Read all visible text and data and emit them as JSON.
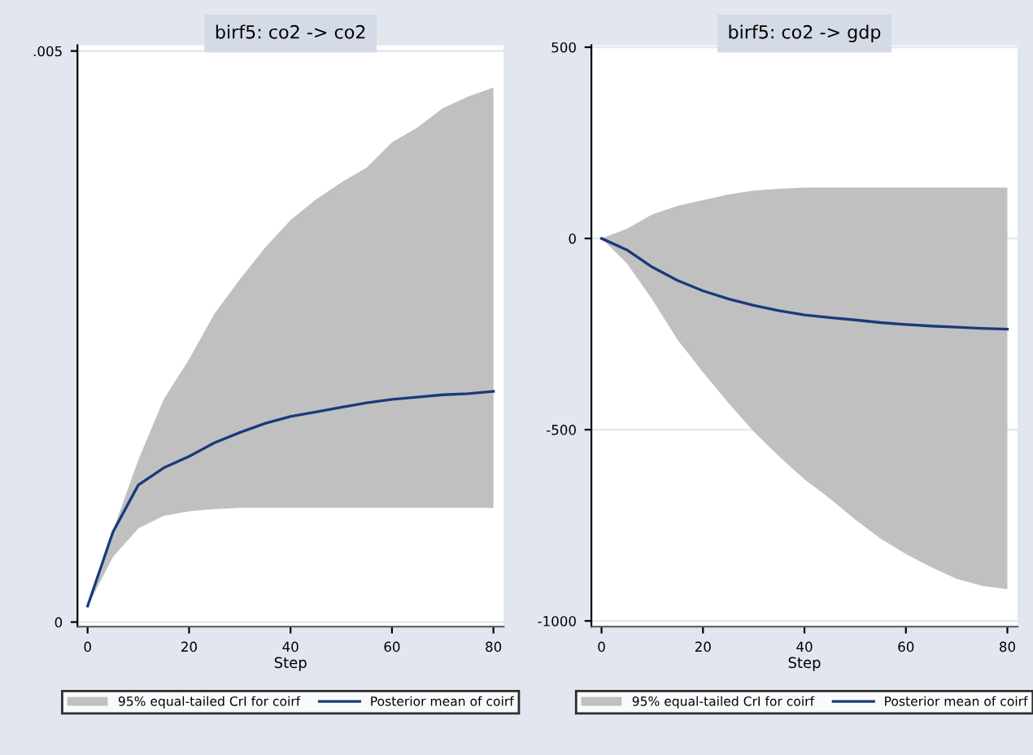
{
  "chart_data": [
    {
      "type": "line",
      "title": "birf5: co2 -> co2",
      "xlabel": "Step",
      "annotations": [
        "95% equal-tailed CrI for coirf"
      ],
      "x": [
        0,
        5,
        10,
        15,
        20,
        25,
        30,
        35,
        40,
        45,
        50,
        55,
        60,
        65,
        70,
        75,
        80
      ],
      "series": [
        {
          "name": "Posterior mean of coirf",
          "color": "#1a3a7a",
          "values": [
            0.00014,
            0.00079,
            0.0012,
            0.00135,
            0.00145,
            0.00157,
            0.00166,
            0.00174,
            0.0018,
            0.00184,
            0.00188,
            0.00192,
            0.00195,
            0.00197,
            0.00199,
            0.002,
            0.00202
          ],
          "lower": [
            0.00014,
            0.00057,
            0.00082,
            0.00093,
            0.00097,
            0.00099,
            0.001,
            0.001,
            0.001,
            0.001,
            0.001,
            0.001,
            0.001,
            0.001,
            0.001,
            0.001,
            0.001
          ],
          "upper": [
            0.00014,
            0.0008,
            0.00142,
            0.00195,
            0.0023,
            0.0027,
            0.003,
            0.00328,
            0.00352,
            0.0037,
            0.00385,
            0.00398,
            0.0042,
            0.00433,
            0.0045,
            0.0046,
            0.00468
          ]
        }
      ],
      "xlim": [
        -2,
        82
      ],
      "xticks": [
        0,
        20,
        40,
        60,
        80
      ],
      "ylim": [
        -4e-05,
        0.00505
      ],
      "yticks": [
        0,
        {
          "value": 0.005,
          "label": ".005"
        }
      ],
      "grid": "y",
      "legend": "bottom"
    },
    {
      "type": "line",
      "title": "birf5: co2 -> gdp",
      "xlabel": "Step",
      "annotations": [
        "95% equal-tailed CrI for coirf"
      ],
      "x": [
        0,
        5,
        10,
        15,
        20,
        25,
        30,
        35,
        40,
        45,
        50,
        55,
        60,
        65,
        70,
        75,
        80
      ],
      "series": [
        {
          "name": "Posterior mean of coirf",
          "color": "#1a3a7a",
          "values": [
            0,
            -30,
            -75,
            -110,
            -137,
            -158,
            -175,
            -189,
            -200,
            -207,
            -213,
            -220,
            -225,
            -229,
            -232,
            -235,
            -237
          ],
          "lower": [
            0,
            -65,
            -160,
            -265,
            -350,
            -430,
            -505,
            -570,
            -630,
            -680,
            -735,
            -785,
            -825,
            -860,
            -890,
            -908,
            -917
          ],
          "upper": [
            0,
            25,
            63,
            85,
            100,
            115,
            125,
            130,
            133,
            133,
            133,
            133,
            133,
            133,
            133,
            133,
            133
          ]
        }
      ],
      "xlim": [
        -2,
        82
      ],
      "xticks": [
        0,
        20,
        40,
        60,
        80
      ],
      "ylim": [
        -1015,
        505
      ],
      "yticks": [
        -1000,
        -500,
        0,
        500
      ],
      "grid": "y",
      "legend": "bottom"
    }
  ]
}
